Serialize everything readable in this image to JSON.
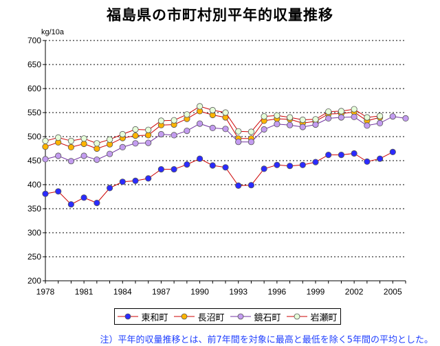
{
  "chart_data": {
    "type": "line",
    "title": "福島県の市町村別平年的収量推移",
    "ylabel": "kg/10a",
    "xlabel": "",
    "ylim": [
      200,
      700
    ],
    "yticks": [
      200,
      250,
      300,
      350,
      400,
      450,
      500,
      550,
      600,
      650,
      700
    ],
    "xlim": [
      1978,
      2006
    ],
    "xticks": [
      1978,
      1981,
      1984,
      1987,
      1990,
      1993,
      1996,
      1999,
      2002,
      2005
    ],
    "x": [
      1978,
      1979,
      1980,
      1981,
      1982,
      1983,
      1984,
      1985,
      1986,
      1987,
      1988,
      1989,
      1990,
      1991,
      1992,
      1993,
      1994,
      1995,
      1996,
      1997,
      1998,
      1999,
      2000,
      2001,
      2002,
      2003,
      2004,
      2005,
      2006
    ],
    "series": [
      {
        "name": "東和町",
        "color": "#2b2bff",
        "line_color": "#cc0000",
        "values": [
          381,
          386,
          359,
          373,
          362,
          393,
          406,
          408,
          413,
          432,
          432,
          442,
          454,
          440,
          436,
          398,
          399,
          433,
          441,
          439,
          441,
          447,
          462,
          462,
          465,
          448,
          454,
          468,
          null
        ]
      },
      {
        "name": "長沼町",
        "color": "#ffb400",
        "line_color": "#cc0000",
        "values": [
          479,
          488,
          478,
          485,
          475,
          484,
          497,
          502,
          503,
          524,
          525,
          537,
          553,
          545,
          540,
          496,
          496,
          533,
          537,
          536,
          528,
          532,
          547,
          548,
          551,
          533,
          540,
          null,
          null
        ]
      },
      {
        "name": "鏡石町",
        "color": "#c39cf0",
        "line_color": "#7030a0",
        "values": [
          453,
          460,
          449,
          460,
          452,
          464,
          478,
          486,
          487,
          505,
          503,
          512,
          527,
          518,
          516,
          489,
          489,
          515,
          526,
          524,
          520,
          525,
          538,
          540,
          541,
          523,
          528,
          542,
          538
        ]
      },
      {
        "name": "岩瀬町",
        "color": "#e6ffd9",
        "line_color": "#cc0000",
        "values": [
          491,
          498,
          491,
          496,
          486,
          494,
          505,
          515,
          514,
          533,
          534,
          546,
          563,
          555,
          550,
          511,
          510,
          542,
          544,
          540,
          535,
          536,
          552,
          553,
          557,
          540,
          543,
          null,
          null
        ]
      }
    ],
    "legend_position": "bottom",
    "grid": true,
    "note": "注）平年的収量推移とは、前7年間を対象に最高と最低を除く5年間の平均とした。"
  }
}
